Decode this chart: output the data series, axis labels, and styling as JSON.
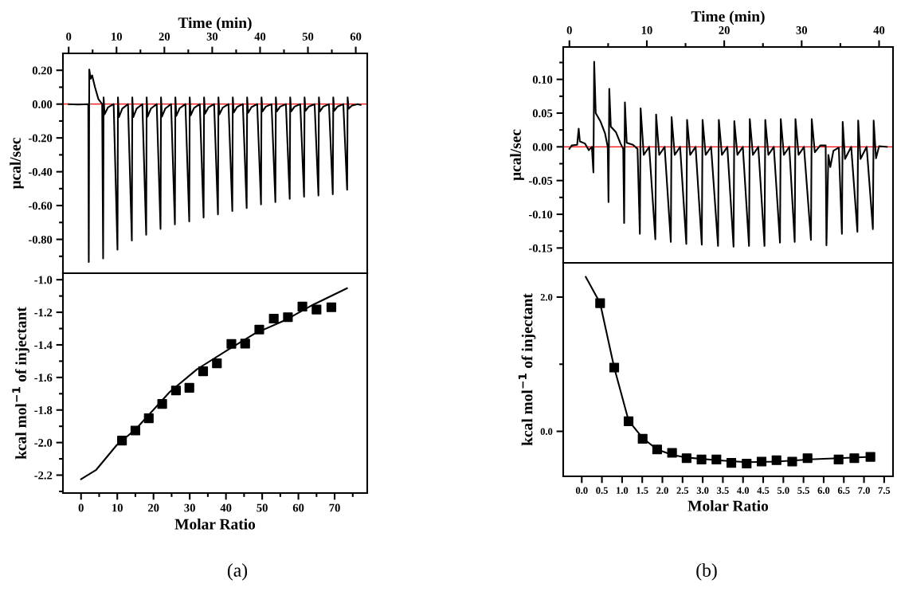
{
  "chart_data": [
    {
      "type": "line",
      "xlabel": "Time (min)",
      "ylabel": "μcal/sec",
      "xlim": [
        -1.2,
        62.4
      ],
      "ylim": [
        -1.0,
        0.3
      ],
      "xticks": [
        0,
        {
          "value": 5,
          "label": null
        },
        10,
        {
          "value": 15,
          "label": null
        },
        20,
        {
          "value": 25,
          "label": null
        },
        30,
        {
          "value": 35,
          "label": null
        },
        40,
        {
          "value": 45,
          "label": null
        },
        50,
        {
          "value": 55,
          "label": null
        },
        60
      ],
      "yticks": [
        {
          "value": 0.2,
          "label": "0.20"
        },
        {
          "value": 0.1,
          "label": null
        },
        {
          "value": 0.0,
          "label": "0.00"
        },
        {
          "value": -0.1,
          "label": null
        },
        {
          "value": -0.2,
          "label": "-0.20"
        },
        {
          "value": -0.3,
          "label": null
        },
        {
          "value": -0.4,
          "label": "-0.40"
        },
        {
          "value": -0.5,
          "label": null
        },
        {
          "value": -0.6,
          "label": "-0.60"
        },
        {
          "value": -0.7,
          "label": null
        },
        {
          "value": -0.8,
          "label": "-0.80"
        },
        {
          "value": -0.9,
          "label": null
        }
      ],
      "ref_lines": [
        {
          "axis": "y",
          "value": 0,
          "color": "#ff0000"
        }
      ],
      "grid": false,
      "legend": false,
      "series": [
        {
          "color": "#000000",
          "x": [
            0,
            2,
            4.1,
            4.2,
            4.3,
            4.6,
            4.9,
            5.5,
            6.2,
            7.0,
            7.2,
            7.3,
            7.5,
            8.2,
            9.4,
            10.2,
            10.3,
            10.5,
            11.2,
            12.4,
            13.2,
            13.3,
            13.5,
            14.2,
            15.4,
            16.2,
            16.3,
            16.5,
            17.2,
            18.4,
            19.2,
            19.3,
            19.5,
            20.2,
            21.4,
            22.2,
            22.3,
            22.5,
            23.2,
            24.4,
            25.2,
            25.3,
            25.5,
            26.2,
            27.4,
            28.2,
            28.3,
            28.5,
            29.2,
            30.4,
            31.2,
            31.3,
            31.5,
            32.2,
            33.4,
            34.2,
            34.3,
            34.5,
            35.2,
            36.4,
            37.2,
            37.3,
            37.5,
            38.2,
            39.4,
            40.2,
            40.3,
            40.5,
            41.2,
            42.4,
            43.2,
            43.3,
            43.5,
            44.2,
            45.4,
            46.2,
            46.3,
            46.5,
            47.2,
            48.4,
            49.2,
            49.3,
            49.5,
            50.2,
            51.4,
            52.2,
            52.3,
            52.5,
            53.2,
            54.4,
            55.2,
            55.3,
            55.5,
            56.2,
            57.4,
            58.2,
            58.3,
            58.5,
            59.2,
            60.4,
            61.0
          ],
          "values": [
            0.0,
            -0.003,
            0.0,
            -0.934,
            0.205,
            0.15,
            0.17,
            0.1,
            0.03,
            0.0,
            -0.913,
            0.04,
            -0.06,
            -0.02,
            0.0,
            -0.861,
            0.04,
            -0.077,
            -0.027,
            0.0,
            -0.807,
            0.04,
            -0.077,
            -0.027,
            0.0,
            -0.773,
            0.04,
            -0.074,
            -0.026,
            0.0,
            -0.738,
            0.04,
            -0.074,
            -0.026,
            0.0,
            -0.711,
            0.04,
            -0.069,
            -0.024,
            0.0,
            -0.694,
            0.04,
            -0.066,
            -0.023,
            0.0,
            -0.671,
            0.04,
            -0.057,
            -0.02,
            0.0,
            -0.652,
            0.04,
            -0.06,
            -0.021,
            0.0,
            -0.632,
            0.04,
            -0.049,
            -0.017,
            0.0,
            -0.615,
            0.04,
            -0.052,
            -0.018,
            0.0,
            -0.593,
            0.04,
            -0.044,
            -0.015,
            0.0,
            -0.58,
            0.04,
            -0.044,
            -0.015,
            0.0,
            -0.56,
            0.04,
            -0.044,
            -0.015,
            0.0,
            -0.548,
            0.04,
            -0.04,
            -0.014,
            0.0,
            -0.541,
            0.04,
            -0.044,
            -0.015,
            0.0,
            -0.533,
            0.04,
            -0.04,
            -0.014,
            0.0,
            -0.506,
            0.04,
            -0.027,
            -0.009,
            0.0,
            -0.005
          ]
        }
      ]
    },
    {
      "type": "scatter",
      "xlabel": "Molar Ratio",
      "ylabel": "kcal mol$^{−1}$ of injectant",
      "xlim": [
        -5,
        79
      ],
      "ylim": [
        -2.31,
        -0.96
      ],
      "xticks": [
        0,
        {
          "value": 5,
          "label": null
        },
        10,
        {
          "value": 15,
          "label": null
        },
        20,
        {
          "value": 25,
          "label": null
        },
        30,
        {
          "value": 35,
          "label": null
        },
        40,
        {
          "value": 45,
          "label": null
        },
        50,
        {
          "value": 55,
          "label": null
        },
        60,
        {
          "value": 65,
          "label": null
        },
        70,
        {
          "value": 75,
          "label": null
        }
      ],
      "yticks": [
        {
          "value": -1.0,
          "label": "-1.0"
        },
        {
          "value": -1.1,
          "label": null
        },
        -1.2,
        {
          "value": -1.3,
          "label": null
        },
        -1.4,
        {
          "value": -1.5,
          "label": null
        },
        -1.6,
        {
          "value": -1.7,
          "label": null
        },
        -1.8,
        {
          "value": -1.9,
          "label": null
        },
        {
          "value": -2.0,
          "label": "-2.0"
        },
        {
          "value": -2.1,
          "label": null
        },
        -2.2,
        {
          "value": -2.3,
          "label": null
        }
      ],
      "grid": false,
      "legend": false,
      "annotations": [
        "(a)"
      ],
      "series": [
        {
          "marker": "square",
          "color": "#000000",
          "x": [
            11.3,
            15.0,
            18.7,
            22.4,
            26.2,
            29.9,
            33.7,
            37.5,
            41.5,
            45.3,
            49.2,
            53.2,
            57.1,
            61.1,
            65.0,
            69.1
          ],
          "values": [
            -1.988,
            -1.926,
            -1.851,
            -1.763,
            -1.68,
            -1.664,
            -1.562,
            -1.513,
            -1.394,
            -1.392,
            -1.306,
            -1.239,
            -1.23,
            -1.165,
            -1.183,
            -1.169
          ]
        },
        {
          "type": "line",
          "marker": "none",
          "color": "#000000",
          "x": [
            0.0,
            4.2,
            9.9,
            15.0,
            24.5,
            32.0,
            40.3,
            48.0,
            56.2,
            64.1,
            73.4
          ],
          "values": [
            -2.225,
            -2.167,
            -2.014,
            -1.92,
            -1.689,
            -1.55,
            -1.434,
            -1.33,
            -1.25,
            -1.153,
            -1.053
          ]
        }
      ]
    },
    {
      "type": "line",
      "xlabel": "Time (min)",
      "ylabel": "μcal/sec",
      "xlim": [
        -0.8,
        41.8
      ],
      "ylim": [
        -0.172,
        0.148
      ],
      "xticks": [
        0,
        {
          "value": 5,
          "label": null
        },
        10,
        {
          "value": 15,
          "label": null
        },
        20,
        {
          "value": 25,
          "label": null
        },
        30,
        {
          "value": 35,
          "label": null
        },
        40
      ],
      "yticks": [
        {
          "value": 0.125,
          "label": null
        },
        {
          "value": 0.1,
          "label": "0.10"
        },
        {
          "value": 0.075,
          "label": null
        },
        {
          "value": 0.05,
          "label": "0.05"
        },
        {
          "value": 0.025,
          "label": null
        },
        {
          "value": 0.0,
          "label": "0.00"
        },
        {
          "value": -0.025,
          "label": null
        },
        {
          "value": -0.05,
          "label": "-0.05"
        },
        {
          "value": -0.075,
          "label": null
        },
        {
          "value": -0.1,
          "label": "-0.10"
        },
        {
          "value": -0.125,
          "label": null
        },
        {
          "value": -0.15,
          "label": "-0.15"
        }
      ],
      "ref_lines": [
        {
          "axis": "y",
          "value": 0,
          "color": "#ff0000"
        }
      ],
      "grid": false,
      "legend": false,
      "series": [
        {
          "color": "#000000",
          "x": [
            0,
            0.3,
            1.0,
            1.2,
            1.35,
            2.0,
            2.5,
            2.9,
            3.1,
            3.2,
            3.4,
            4.0,
            4.6,
            4.95,
            5.05,
            5.15,
            5.35,
            6.0,
            6.6,
            6.95,
            7.07,
            7.17,
            7.4,
            8.2,
            8.8,
            9.1,
            9.2,
            9.6,
            10.3,
            11.1,
            11.2,
            11.6,
            12.3,
            13.1,
            13.2,
            13.6,
            14.3,
            15.1,
            15.2,
            15.6,
            16.3,
            17.1,
            17.2,
            17.6,
            18.3,
            19.2,
            19.3,
            19.7,
            20.4,
            21.2,
            21.3,
            21.7,
            22.4,
            23.2,
            23.3,
            23.7,
            24.4,
            25.2,
            25.3,
            25.7,
            26.4,
            27.2,
            27.3,
            27.7,
            28.4,
            29.1,
            29.2,
            29.6,
            30.3,
            31.2,
            31.3,
            31.7,
            32.4,
            33.1,
            33.2,
            33.45,
            33.7,
            34.1,
            34.8,
            35.2,
            35.3,
            35.6,
            36.4,
            37.2,
            37.3,
            37.6,
            38.4,
            39.2,
            39.3,
            39.6,
            40.0,
            41.0
          ],
          "values": [
            -0.003,
            0.002,
            0.003,
            0.027,
            0.008,
            0.005,
            -0.005,
            0.0,
            -0.038,
            0.126,
            0.05,
            0.038,
            0.02,
            0.0,
            -0.082,
            0.086,
            0.03,
            0.022,
            0.005,
            -0.003,
            -0.113,
            0.066,
            0.006,
            0.003,
            -0.003,
            -0.129,
            0.057,
            -0.012,
            0.0,
            -0.137,
            0.048,
            -0.012,
            0.0,
            -0.141,
            0.044,
            -0.012,
            0.0,
            -0.144,
            0.04,
            -0.012,
            0.0,
            -0.145,
            0.04,
            -0.012,
            0.0,
            -0.147,
            0.04,
            -0.012,
            0.0,
            -0.148,
            0.038,
            -0.012,
            0.0,
            -0.147,
            0.041,
            -0.012,
            0.0,
            -0.147,
            0.04,
            -0.012,
            0.0,
            -0.142,
            0.041,
            -0.012,
            0.0,
            -0.141,
            0.041,
            -0.012,
            0.0,
            -0.138,
            0.041,
            -0.008,
            0.002,
            0.002,
            -0.146,
            -0.012,
            -0.03,
            -0.006,
            -0.001,
            -0.129,
            0.037,
            -0.018,
            0.0,
            -0.126,
            0.039,
            -0.018,
            0.0,
            -0.122,
            0.039,
            -0.017,
            0.001,
            0.0
          ]
        }
      ]
    },
    {
      "type": "scatter",
      "xlabel": "Molar Ratio",
      "ylabel": "kcal mol$^{−1}$ of injectant",
      "xlim": [
        -0.46,
        7.72
      ],
      "ylim": [
        -0.67,
        2.51
      ],
      "xticks": [
        {
          "value": 0,
          "label": "0.0"
        },
        0.5,
        {
          "value": 1,
          "label": "1.0"
        },
        1.5,
        {
          "value": 2,
          "label": "2.0"
        },
        2.5,
        {
          "value": 3,
          "label": "3.0"
        },
        3.5,
        {
          "value": 4,
          "label": "4.0"
        },
        4.5,
        {
          "value": 5,
          "label": "5.0"
        },
        5.5,
        {
          "value": 6,
          "label": "6.0"
        },
        6.5,
        {
          "value": 7,
          "label": "7.0"
        },
        7.5
      ],
      "yticks": [
        {
          "value": 0,
          "label": "0.0"
        },
        {
          "value": 1,
          "label": null
        },
        {
          "value": 2,
          "label": "2.0"
        }
      ],
      "grid": false,
      "legend": false,
      "annotations": [
        "(b)"
      ],
      "series": [
        {
          "marker": "square",
          "color": "#000000",
          "x": [
            0.455,
            0.805,
            1.161,
            1.51,
            1.87,
            2.24,
            2.6,
            2.97,
            3.34,
            3.71,
            4.09,
            4.46,
            4.83,
            5.22,
            5.6,
            6.37,
            6.76,
            7.16
          ],
          "values": [
            1.91,
            0.95,
            0.15,
            -0.11,
            -0.27,
            -0.32,
            -0.4,
            -0.42,
            -0.42,
            -0.47,
            -0.48,
            -0.45,
            -0.43,
            -0.45,
            -0.4,
            -0.42,
            -0.4,
            -0.38
          ]
        },
        {
          "type": "line",
          "marker": "none",
          "color": "#000000",
          "x": [
            0.1,
            0.455,
            0.805,
            1.161,
            1.51,
            1.87,
            2.24,
            2.6,
            3.34,
            4.09,
            4.83,
            5.6,
            6.37,
            7.16
          ],
          "values": [
            2.3,
            1.91,
            0.95,
            0.16,
            -0.1,
            -0.27,
            -0.35,
            -0.39,
            -0.43,
            -0.46,
            -0.45,
            -0.42,
            -0.4,
            -0.38
          ]
        }
      ]
    }
  ]
}
